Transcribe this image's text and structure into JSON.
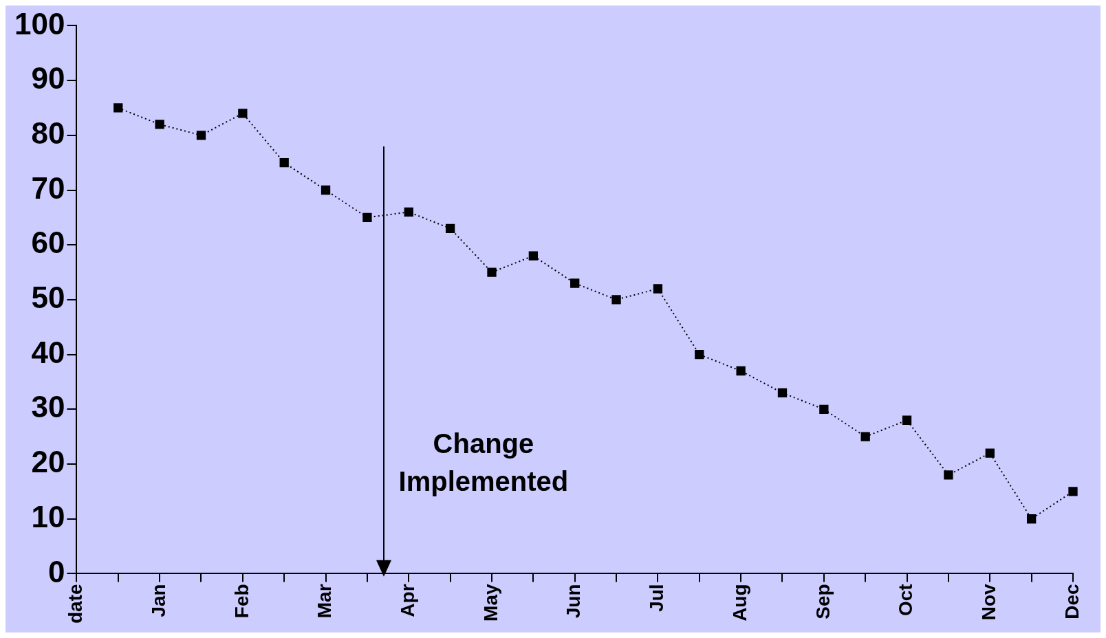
{
  "chart_data": {
    "type": "line",
    "categories": [
      "date",
      null,
      "Jan",
      null,
      "Feb",
      null,
      "Mar",
      null,
      "Apr",
      null,
      "May",
      null,
      "Jun",
      null,
      "Jul",
      null,
      "Aug",
      null,
      "Sep",
      null,
      "Oct",
      null,
      "Nov",
      null,
      "Dec"
    ],
    "series": [
      {
        "color": "#000000",
        "values": [
          null,
          85,
          82,
          80,
          84,
          75,
          70,
          65,
          66,
          63,
          55,
          58,
          53,
          50,
          52,
          40,
          37,
          33,
          30,
          25,
          28,
          18,
          22,
          10,
          15
        ]
      }
    ],
    "ylim": [
      0,
      100
    ],
    "yticks": [
      0,
      10,
      20,
      30,
      40,
      50,
      60,
      70,
      80,
      90,
      100
    ],
    "grid": false,
    "legend": false,
    "marker": "square",
    "line_style": "dotted",
    "annotations": [
      "Change Implemented"
    ]
  }
}
